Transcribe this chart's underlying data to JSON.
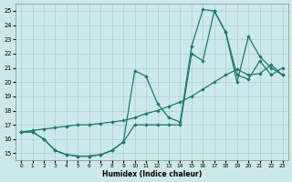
{
  "xlabel": "Humidex (Indice chaleur)",
  "xlim": [
    -0.5,
    23.5
  ],
  "ylim": [
    14.5,
    25.5
  ],
  "xticks": [
    0,
    1,
    2,
    3,
    4,
    5,
    6,
    7,
    8,
    9,
    10,
    11,
    12,
    13,
    14,
    15,
    16,
    17,
    18,
    19,
    20,
    21,
    22,
    23
  ],
  "yticks": [
    15,
    16,
    17,
    18,
    19,
    20,
    21,
    22,
    23,
    24,
    25
  ],
  "bg_color": "#cce8e8",
  "line_color": "#1a7a6e",
  "grid_color": "#aacfcf",
  "line1_x": [
    0,
    1,
    2,
    3,
    4,
    5,
    6,
    7,
    8,
    9,
    10,
    11,
    12,
    13,
    14,
    15,
    16,
    17,
    18,
    19,
    20,
    21,
    22,
    23
  ],
  "line1_y": [
    16.5,
    16.5,
    16.0,
    15.2,
    14.9,
    14.8,
    14.8,
    14.9,
    15.2,
    15.8,
    17.0,
    17.0,
    17.0,
    17.0,
    17.0,
    22.0,
    21.5,
    25.0,
    23.5,
    20.5,
    20.2,
    21.5,
    20.5,
    21.0
  ],
  "line2_x": [
    0,
    1,
    2,
    3,
    4,
    5,
    6,
    7,
    8,
    9,
    10,
    11,
    12,
    13,
    14,
    15,
    16,
    17,
    18,
    19,
    20,
    21,
    22,
    23
  ],
  "line2_y": [
    16.5,
    16.5,
    16.0,
    15.2,
    14.9,
    14.8,
    14.8,
    14.9,
    15.2,
    15.8,
    20.8,
    20.4,
    18.5,
    17.5,
    17.2,
    22.5,
    25.1,
    25.0,
    23.5,
    20.0,
    23.2,
    21.8,
    21.0,
    20.5
  ],
  "line3_x": [
    0,
    1,
    2,
    3,
    4,
    5,
    6,
    7,
    8,
    9,
    10,
    11,
    12,
    13,
    14,
    15,
    16,
    17,
    18,
    19,
    20,
    21,
    22,
    23
  ],
  "line3_y": [
    16.5,
    16.6,
    16.7,
    16.8,
    16.9,
    17.0,
    17.0,
    17.1,
    17.2,
    17.3,
    17.5,
    17.8,
    18.0,
    18.3,
    18.6,
    19.0,
    19.5,
    20.0,
    20.5,
    20.9,
    20.5,
    20.6,
    21.2,
    20.5
  ],
  "marker_style": "D",
  "marker_size": 2.2,
  "line_width": 0.9
}
